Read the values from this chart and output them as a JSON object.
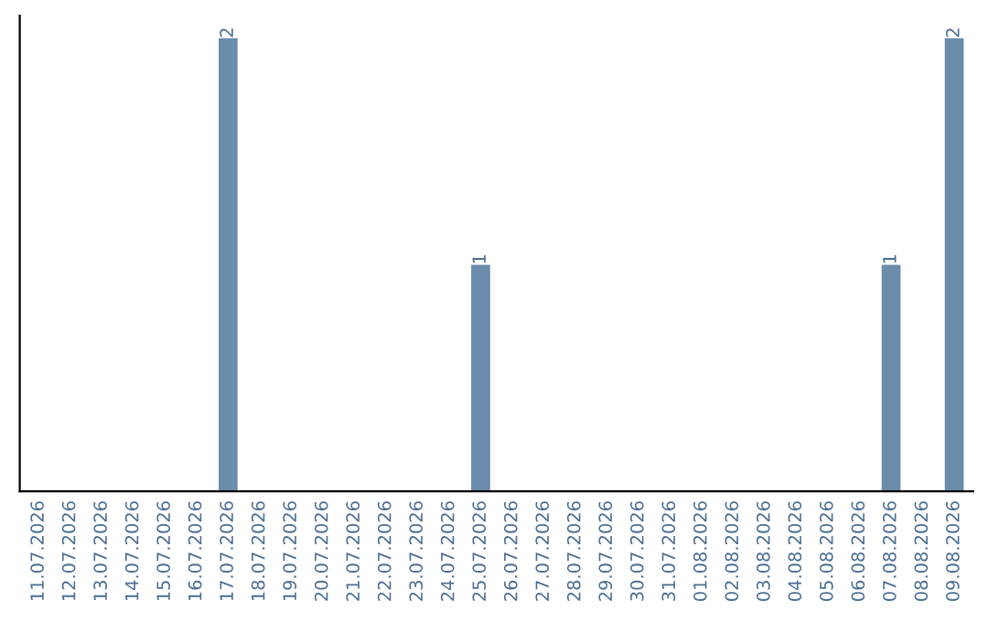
{
  "chart_data": {
    "type": "bar",
    "categories": [
      "11.07.2026",
      "12.07.2026",
      "13.07.2026",
      "14.07.2026",
      "15.07.2026",
      "16.07.2026",
      "17.07.2026",
      "18.07.2026",
      "19.07.2026",
      "20.07.2026",
      "21.07.2026",
      "22.07.2026",
      "23.07.2026",
      "24.07.2026",
      "25.07.2026",
      "26.07.2026",
      "27.07.2026",
      "28.07.2026",
      "29.07.2026",
      "30.07.2026",
      "31.07.2026",
      "01.08.2026",
      "02.08.2026",
      "03.08.2026",
      "04.08.2026",
      "05.08.2026",
      "06.08.2026",
      "07.08.2026",
      "08.08.2026",
      "09.08.2026"
    ],
    "values": [
      0,
      0,
      0,
      0,
      0,
      0,
      2,
      0,
      0,
      0,
      0,
      0,
      0,
      0,
      1,
      0,
      0,
      0,
      0,
      0,
      0,
      0,
      0,
      0,
      0,
      0,
      0,
      1,
      0,
      2
    ],
    "value_labels": [
      null,
      null,
      null,
      null,
      null,
      null,
      "2",
      null,
      null,
      null,
      null,
      null,
      null,
      null,
      "1",
      null,
      null,
      null,
      null,
      null,
      null,
      null,
      null,
      null,
      null,
      null,
      null,
      "1",
      null,
      "2"
    ],
    "color": "#6b8cab",
    "ylim": [
      0,
      2.1
    ],
    "tick_labels": "x",
    "grid": false,
    "legend": false
  }
}
